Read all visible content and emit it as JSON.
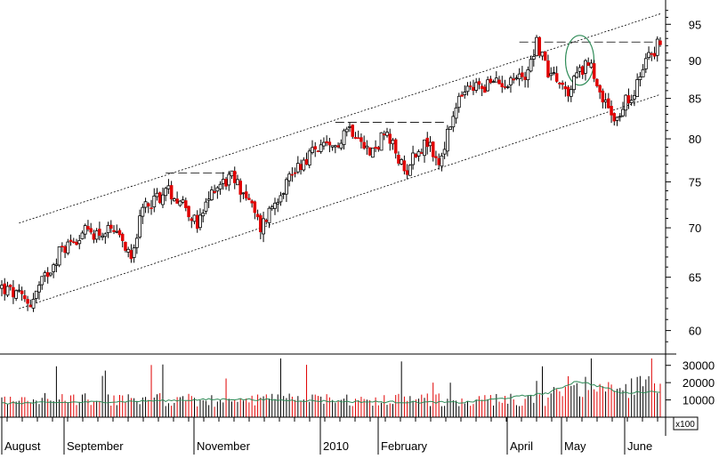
{
  "chart_data": [
    {
      "type": "candlestick",
      "title": "",
      "y_scale": "log",
      "ylim": [
        58,
        98
      ],
      "y_ticks": [
        "60",
        "65",
        "70",
        "75",
        "80",
        "85",
        "90",
        "95"
      ],
      "x_labels": [
        "August",
        "September",
        "November",
        "2010",
        "February",
        "April",
        "May",
        "June"
      ],
      "colors": {
        "up": "#000000",
        "down": "#e00000",
        "volume_ma": "#2e8b57",
        "circle": "#2e8b57"
      },
      "price_path": [
        [
          0,
          64
        ],
        [
          10,
          62.5
        ],
        [
          20,
          67.5
        ],
        [
          28,
          69.5
        ],
        [
          38,
          69.5
        ],
        [
          45,
          67.5
        ],
        [
          50,
          72.5
        ],
        [
          58,
          74
        ],
        [
          64,
          72.5
        ],
        [
          68,
          70
        ],
        [
          74,
          74.5
        ],
        [
          80,
          75.5
        ],
        [
          85,
          73.5
        ],
        [
          90,
          70
        ],
        [
          96,
          73.5
        ],
        [
          102,
          76.5
        ],
        [
          110,
          79
        ],
        [
          115,
          78.5
        ],
        [
          120,
          81.5
        ],
        [
          125,
          80.5
        ],
        [
          128,
          78
        ],
        [
          133,
          80.5
        ],
        [
          137,
          78.5
        ],
        [
          140,
          76
        ],
        [
          144,
          78.5
        ],
        [
          148,
          79.5
        ],
        [
          152,
          77
        ],
        [
          156,
          81.5
        ],
        [
          160,
          85.5
        ],
        [
          165,
          86.5
        ],
        [
          172,
          87
        ],
        [
          178,
          87.5
        ],
        [
          182,
          88
        ],
        [
          186,
          92.5
        ],
        [
          190,
          88.5
        ],
        [
          196,
          85.5
        ],
        [
          200,
          88
        ],
        [
          204,
          90
        ],
        [
          206,
          87.5
        ],
        [
          209,
          85
        ],
        [
          212,
          82
        ],
        [
          215,
          83.5
        ],
        [
          220,
          86
        ],
        [
          224,
          90
        ],
        [
          228,
          92
        ],
        [
          229,
          92.5
        ]
      ],
      "channel_upper": {
        "start": [
          6,
          70.5
        ],
        "end": [
          229,
          96.5
        ]
      },
      "channel_lower": {
        "start": [
          6,
          62
        ],
        "end": [
          229,
          85.5
        ]
      },
      "resistance_lines": [
        {
          "x": [
            57,
            83
          ],
          "y": 76
        },
        {
          "x": [
            116,
            155
          ],
          "y": 82
        },
        {
          "x": [
            180,
            228
          ],
          "y": 92.5
        }
      ],
      "volume_axis": {
        "multiplier": "x100",
        "ticks": [
          "10000",
          "20000",
          "30000"
        ],
        "ylim": [
          0,
          35000
        ]
      },
      "volume_ma_path": [
        [
          0,
          8000
        ],
        [
          40,
          9000
        ],
        [
          80,
          10500
        ],
        [
          120,
          9000
        ],
        [
          160,
          8500
        ],
        [
          175,
          11000
        ],
        [
          190,
          14000
        ],
        [
          200,
          21000
        ],
        [
          210,
          17000
        ],
        [
          215,
          14000
        ],
        [
          229,
          15000
        ]
      ]
    }
  ]
}
